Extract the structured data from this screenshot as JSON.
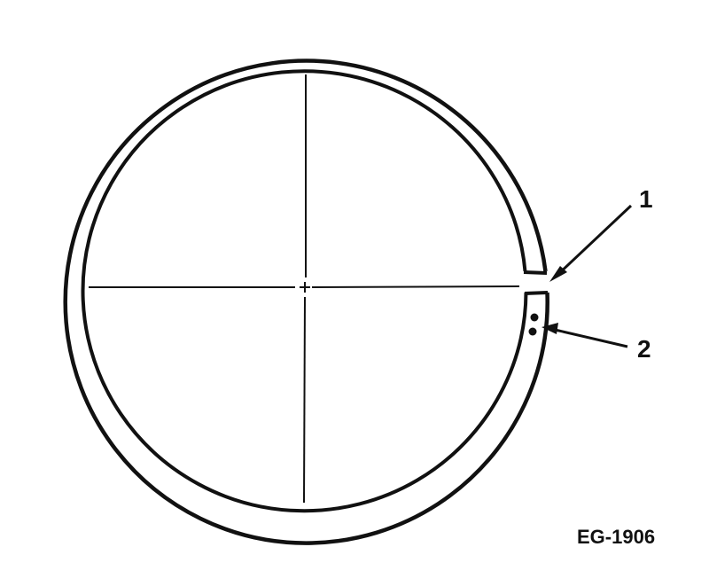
{
  "callouts": [
    {
      "label": "1"
    },
    {
      "label": "2"
    }
  ],
  "figure_code": "EG-1906",
  "colors": {
    "ink": "#111111",
    "background": "#ffffff"
  }
}
